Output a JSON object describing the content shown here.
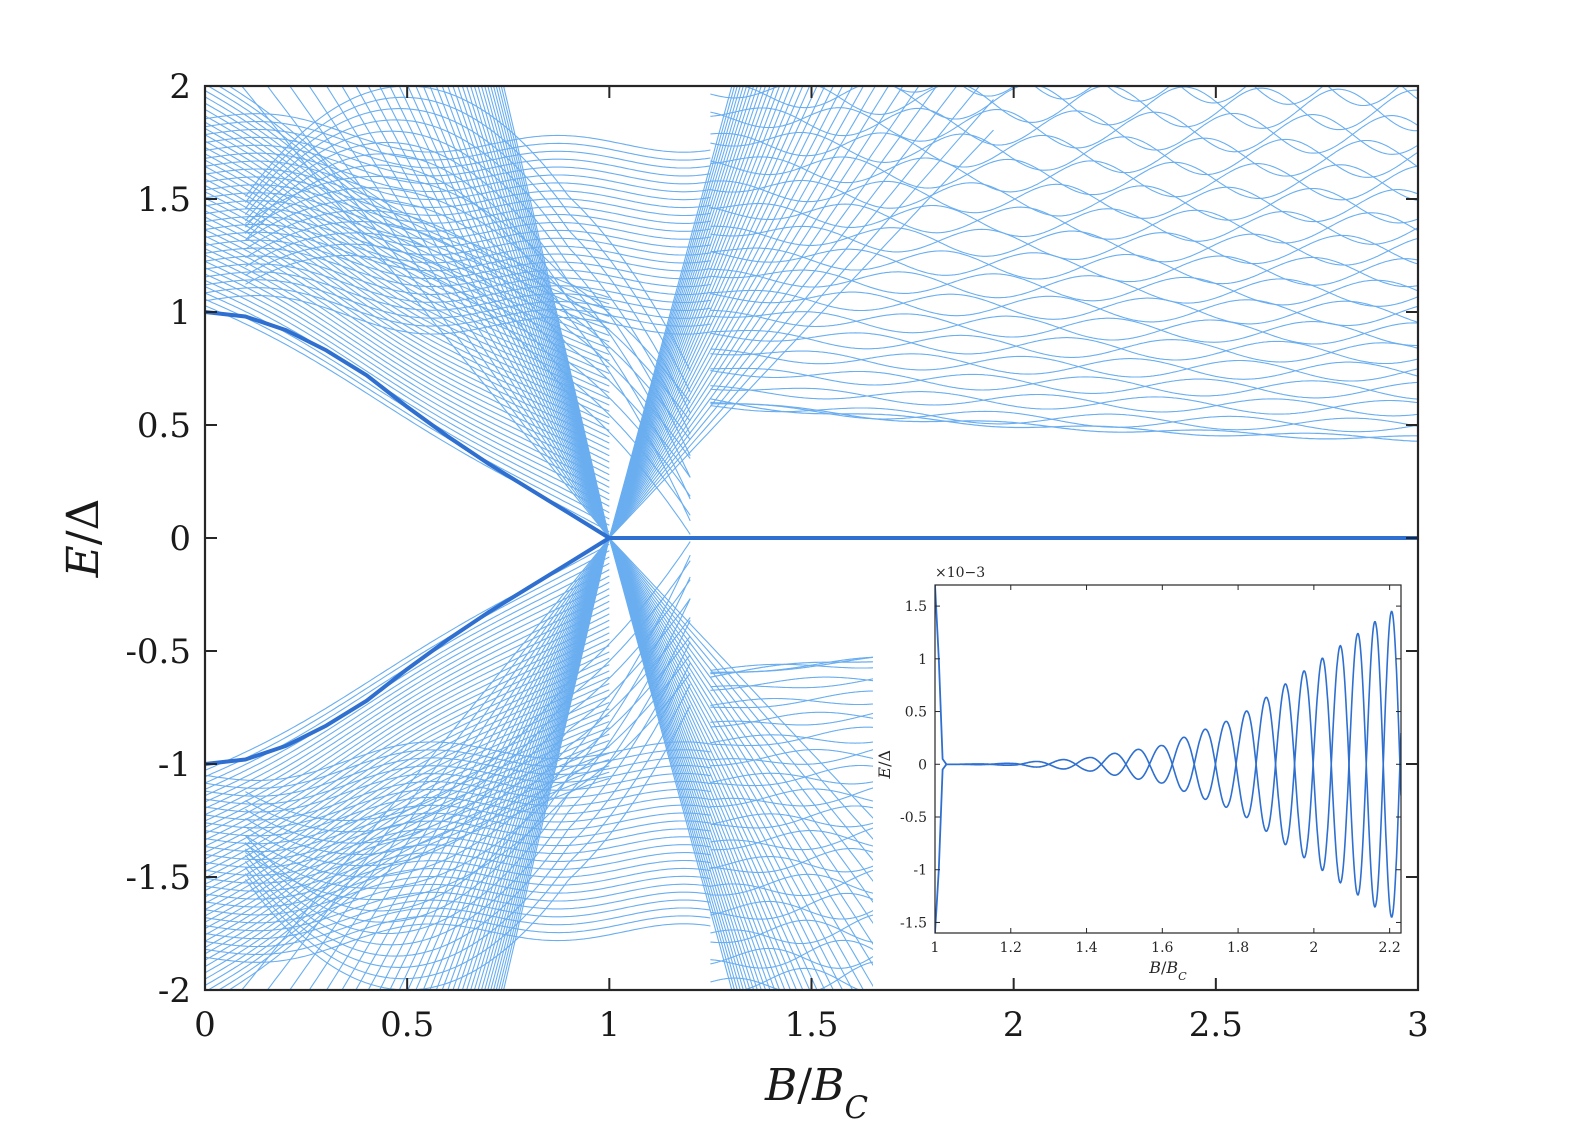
{
  "chart_data": [
    {
      "type": "line",
      "panel": "main",
      "xlabel": "B/B_C",
      "ylabel": "E/Δ",
      "xlim": [
        0,
        3
      ],
      "ylim": [
        -2,
        2
      ],
      "x_ticks": [
        "0",
        "0.5",
        "1",
        "1.5",
        "2",
        "2.5",
        "3"
      ],
      "y_ticks": [
        "2",
        "1.5",
        "1",
        "0.5",
        "0",
        "-0.5",
        "-1",
        "-1.5",
        "-2"
      ],
      "grid": false,
      "colors": {
        "bulk": "#6aaef0",
        "lowest": "#2e6fd0"
      },
      "series": [
        {
          "x": [
            0,
            0.1,
            0.2,
            0.3,
            0.4,
            0.5,
            0.6,
            0.7,
            0.8,
            0.9,
            1.0,
            1.5,
            2.0,
            2.5,
            3.0
          ],
          "values": [
            1.0,
            0.98,
            0.92,
            0.83,
            0.72,
            0.58,
            0.45,
            0.33,
            0.22,
            0.11,
            0.0,
            0.0,
            0.0,
            0.0,
            0.0
          ]
        },
        {
          "x": [
            0,
            0.1,
            0.2,
            0.3,
            0.4,
            0.5,
            0.6,
            0.7,
            0.8,
            0.9,
            1.0,
            1.5,
            2.0,
            2.5,
            3.0
          ],
          "values": [
            -1.0,
            -0.98,
            -0.92,
            -0.83,
            -0.72,
            -0.58,
            -0.45,
            -0.33,
            -0.22,
            -0.11,
            0.0,
            0.0,
            0.0,
            0.0,
            0.0
          ]
        },
        {
          "x": [
            1.25,
            1.5,
            2.0,
            2.5,
            3.0
          ],
          "values": [
            0.6,
            0.53,
            0.46,
            0.41,
            0.38
          ]
        },
        {
          "x": [
            1.25,
            1.5,
            1.65
          ],
          "values": [
            -0.6,
            -0.54,
            -0.5
          ]
        }
      ]
    },
    {
      "type": "line",
      "panel": "inset",
      "xlabel": "B/B_C",
      "ylabel": "E/Δ",
      "y_multiplier": "×10−3",
      "xlim": [
        1,
        2.23
      ],
      "ylim": [
        -1.6,
        1.7
      ],
      "x_ticks": [
        "1",
        "1.2",
        "1.4",
        "1.6",
        "1.8",
        "2",
        "2.2"
      ],
      "y_ticks": [
        "1.5",
        "1",
        "0.5",
        "0",
        "-0.5",
        "-1",
        "-1.5"
      ],
      "envelope": {
        "x": [
          1.05,
          1.2,
          1.4,
          1.6,
          1.8,
          2.0,
          2.2
        ],
        "amplitude": [
          0.0,
          0.01,
          0.06,
          0.18,
          0.45,
          0.95,
          1.45
        ]
      },
      "series": [
        {
          "x": [
            1.0,
            1.01,
            1.02,
            1.03
          ],
          "values": [
            1.7,
            1.0,
            0.05,
            0.0
          ]
        },
        {
          "x": [
            1.0,
            1.01,
            1.02,
            1.03
          ],
          "values": [
            -1.6,
            -1.0,
            -0.05,
            0.0
          ]
        }
      ]
    }
  ]
}
